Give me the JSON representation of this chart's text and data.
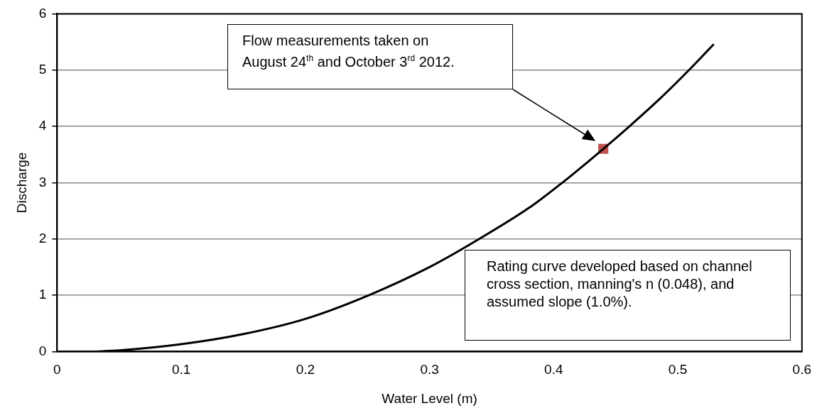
{
  "chart_data": {
    "type": "line",
    "xlabel": "Water Level (m)",
    "ylabel": "Discharge",
    "xlim": [
      0,
      0.6
    ],
    "xticks": [
      0,
      0.1,
      0.2,
      0.3,
      0.4,
      0.5,
      0.6
    ],
    "ylim": [
      0,
      6
    ],
    "yticks": [
      0,
      1,
      2,
      3,
      4,
      5,
      6
    ],
    "grid": "y",
    "legend": false,
    "series": [
      {
        "type": "line",
        "color": "#000000",
        "marker": "none",
        "x": [
          0.03,
          0.05,
          0.1,
          0.15,
          0.2,
          0.25,
          0.3,
          0.34,
          0.38,
          0.407,
          0.44,
          0.461,
          0.486,
          0.509,
          0.529
        ],
        "values": [
          0,
          0.02,
          0.13,
          0.31,
          0.58,
          0.99,
          1.5,
          2.0,
          2.55,
          3.0,
          3.6,
          4.0,
          4.5,
          5.0,
          5.46
        ]
      },
      {
        "type": "scatter",
        "color": "#c0504d",
        "marker": "square",
        "x": [
          0.44
        ],
        "values": [
          3.6
        ]
      }
    ],
    "annotations": [
      "Flow measurements taken on August 24$^{th}$ and October 3$^{rd}$ 2012.",
      "Rating curve developed based on channel cross section, manning's n (0.048), and assumed slope (1.0%)."
    ]
  }
}
